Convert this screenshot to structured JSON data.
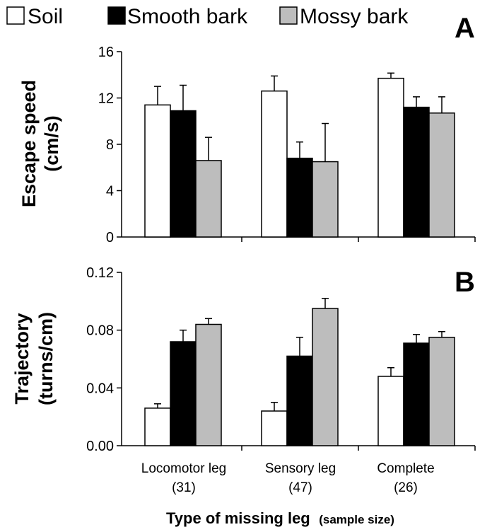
{
  "legend": [
    {
      "label": "Soil",
      "color": "#ffffff"
    },
    {
      "label": "Smooth bark",
      "color": "#000000"
    },
    {
      "label": "Mossy bark",
      "color": "#bdbdbd"
    }
  ],
  "x_title": "Type of missing leg",
  "x_title_sub": "(sample size)",
  "categories": [
    {
      "name": "Locomotor leg",
      "n": "(31)"
    },
    {
      "name": "Sensory leg",
      "n": "(47)"
    },
    {
      "name": "Complete",
      "n": "(26)"
    }
  ],
  "chart_data": [
    {
      "type": "bar",
      "panel": "A",
      "ylabel_line1": "Escape speed",
      "ylabel_line2": "(cm/s)",
      "ylim": [
        0,
        16
      ],
      "yticks": [
        "0",
        "4",
        "8",
        "12",
        "16"
      ],
      "categories": [
        "Locomotor leg (31)",
        "Sensory leg (47)",
        "Complete (26)"
      ],
      "series": [
        {
          "name": "Soil",
          "values": [
            11.4,
            12.6,
            13.7
          ],
          "errors": [
            1.6,
            1.3,
            0.45
          ]
        },
        {
          "name": "Smooth bark",
          "values": [
            10.9,
            6.8,
            11.2
          ],
          "errors": [
            2.2,
            1.4,
            0.9
          ]
        },
        {
          "name": "Mossy bark",
          "values": [
            6.6,
            6.5,
            10.7
          ],
          "errors": [
            2.0,
            3.3,
            1.4
          ]
        }
      ]
    },
    {
      "type": "bar",
      "panel": "B",
      "ylabel_line1": "Trajectory",
      "ylabel_line2": "(turns/cm)",
      "ylim": [
        0,
        0.12
      ],
      "yticks": [
        "0.00",
        "0.04",
        "0.08",
        "0.12"
      ],
      "categories": [
        "Locomotor leg (31)",
        "Sensory leg (47)",
        "Complete (26)"
      ],
      "series": [
        {
          "name": "Soil",
          "values": [
            0.026,
            0.024,
            0.048
          ],
          "errors": [
            0.003,
            0.006,
            0.006
          ]
        },
        {
          "name": "Smooth bark",
          "values": [
            0.072,
            0.062,
            0.071
          ],
          "errors": [
            0.008,
            0.013,
            0.006
          ]
        },
        {
          "name": "Mossy bark",
          "values": [
            0.084,
            0.095,
            0.075
          ],
          "errors": [
            0.004,
            0.007,
            0.004
          ]
        }
      ]
    }
  ]
}
